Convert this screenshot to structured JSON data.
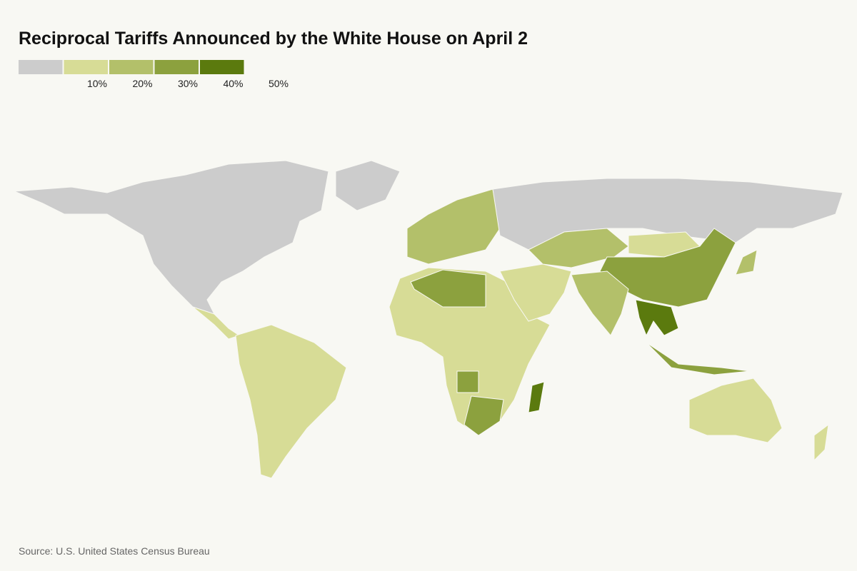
{
  "header": {
    "title": "Reciprocal Tariffs Announced by the White House on April 2"
  },
  "legend": {
    "colors": [
      "#cccccc",
      "#d7dc96",
      "#b3c06a",
      "#8ca13e",
      "#5b7a0e"
    ],
    "labels": [
      "10%",
      "20%",
      "30%",
      "40%",
      "50%"
    ]
  },
  "footer": {
    "source": "Source: U.S. United States Census Bureau"
  }
}
